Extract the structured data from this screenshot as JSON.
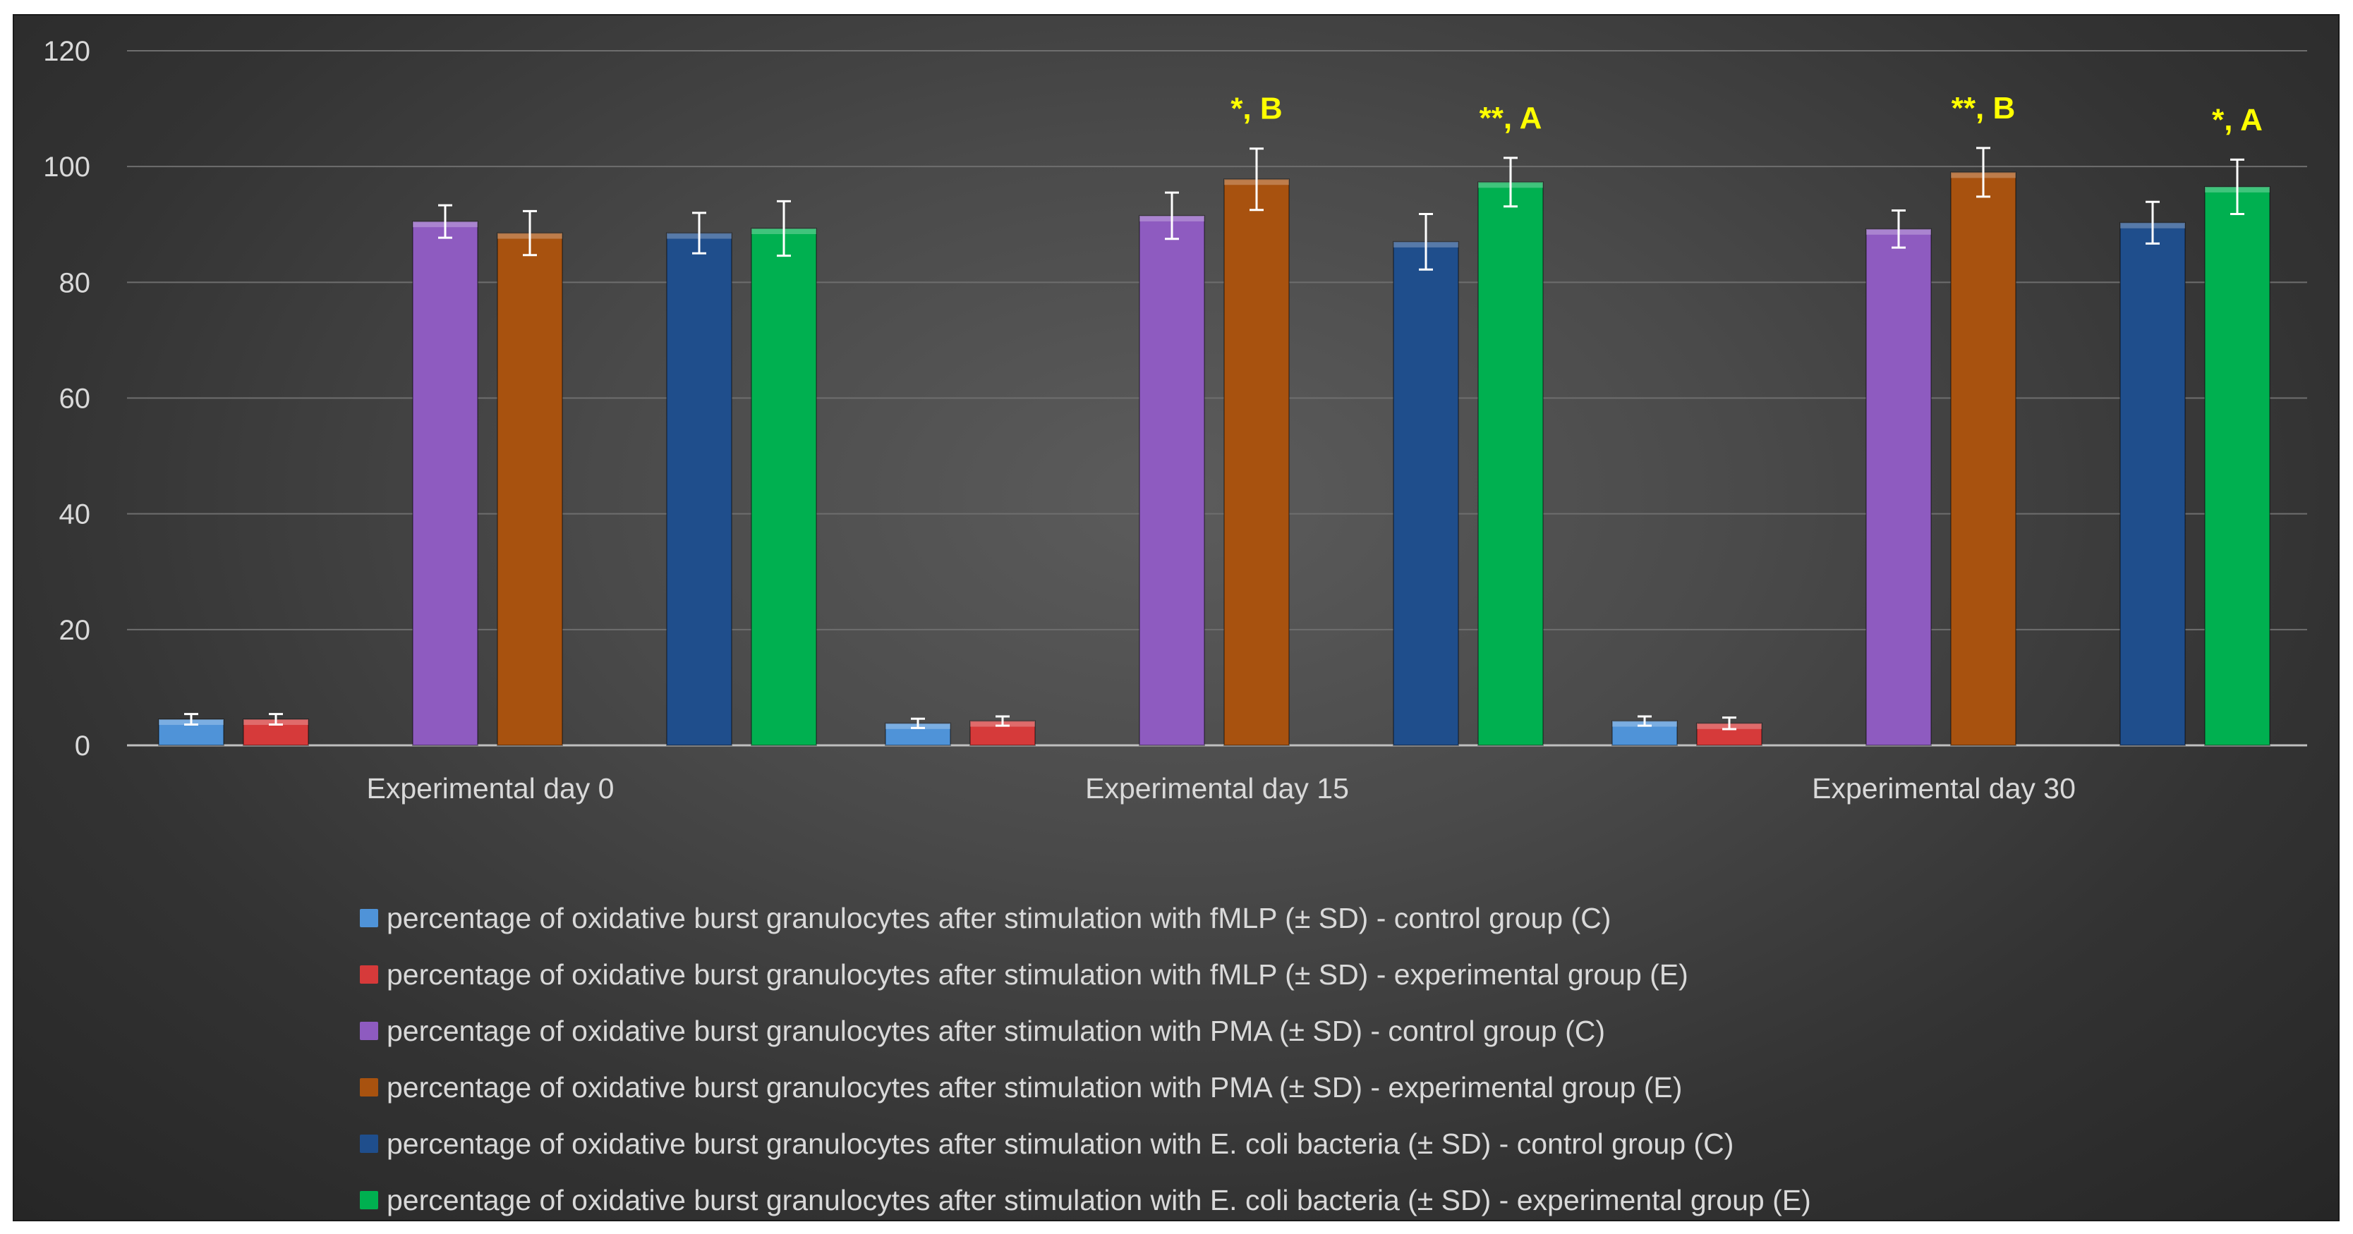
{
  "chart_data": {
    "type": "bar",
    "categories": [
      "Experimental day 0",
      "Experimental day 15",
      "Experimental day 30"
    ],
    "ylim": [
      0,
      120
    ],
    "yticks": [
      0,
      20,
      40,
      60,
      80,
      100,
      120
    ],
    "grid": true,
    "legend_position": "bottom",
    "series": [
      {
        "name": "percentage of oxidative burst granulocytes after stimulation with fMLP (± SD) - control group (C)",
        "color": "#4f93d8",
        "values": [
          4.5,
          3.8,
          4.2
        ],
        "errors": [
          0.9,
          0.8,
          0.8
        ]
      },
      {
        "name": "percentage of oxidative burst granulocytes after stimulation with fMLP (± SD) - experimental group (E)",
        "color": "#d63a3a",
        "values": [
          4.5,
          4.2,
          3.8
        ],
        "errors": [
          0.9,
          0.8,
          1.0
        ]
      },
      {
        "name": "percentage of oxidative burst granulocytes after stimulation with PMA (± SD) - control group (C)",
        "color": "#8e5bc0",
        "values": [
          90.5,
          91.5,
          89.2
        ],
        "errors": [
          2.8,
          4.0,
          3.2
        ]
      },
      {
        "name": "percentage of oxidative burst granulocytes after stimulation with PMA (± SD) - experimental group (E)",
        "color": "#a8520f",
        "values": [
          88.5,
          97.8,
          99.0
        ],
        "errors": [
          3.8,
          5.3,
          4.2
        ]
      },
      {
        "name": "percentage of oxidative burst granulocytes after stimulation with E. coli bacteria (± SD) - control group (C)",
        "color": "#1f4e8c",
        "values": [
          88.5,
          87.0,
          90.3
        ],
        "errors": [
          3.5,
          4.8,
          3.6
        ]
      },
      {
        "name": "percentage of oxidative burst granulocytes after stimulation with E. coli bacteria (± SD) - experimental group (E)",
        "color": "#00b050",
        "values": [
          89.3,
          97.3,
          96.5
        ],
        "errors": [
          4.7,
          4.2,
          4.7
        ]
      }
    ],
    "annotations": [
      {
        "category": 1,
        "series": 3,
        "text": "*, B"
      },
      {
        "category": 1,
        "series": 5,
        "text": "**, A"
      },
      {
        "category": 2,
        "series": 3,
        "text": "**, B"
      },
      {
        "category": 2,
        "series": 5,
        "text": "*, A"
      }
    ]
  }
}
